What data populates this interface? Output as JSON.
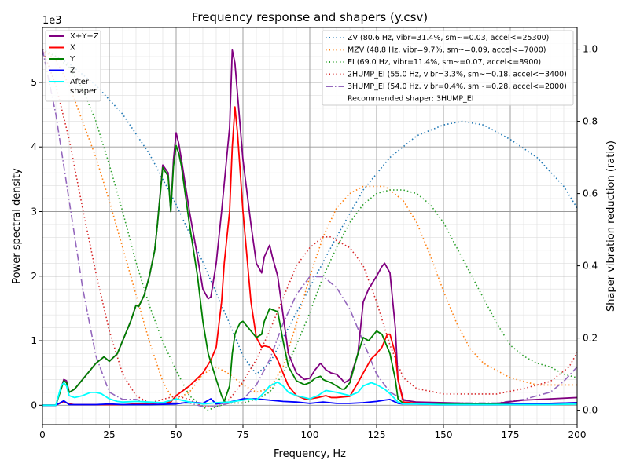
{
  "chart_data": {
    "type": "line",
    "title": "Frequency response and shapers (y.csv)",
    "xlabel": "Frequency, Hz",
    "ylabel": "Power spectral density",
    "y2label": "Shaper vibration reduction (ratio)",
    "y_multiplier": "1e3",
    "xlim": [
      0,
      200
    ],
    "ylim": [
      -0.3,
      5.85
    ],
    "y2lim": [
      -0.04,
      1.06
    ],
    "xticks": [
      0,
      25,
      50,
      75,
      100,
      125,
      150,
      175,
      200
    ],
    "yticks": [
      0,
      1,
      2,
      3,
      4,
      5
    ],
    "y2ticks": [
      0.0,
      0.2,
      0.4,
      0.6,
      0.8,
      1.0
    ],
    "grid": true,
    "psd_series": [
      {
        "name": "X+Y+Z",
        "color": "#800080",
        "x": [
          0,
          5,
          8,
          9,
          10,
          12,
          15,
          20,
          23,
          25,
          28,
          30,
          33,
          35,
          36,
          38,
          40,
          42,
          43,
          45,
          47,
          48,
          49,
          50,
          51,
          52,
          55,
          58,
          60,
          62,
          63,
          65,
          67,
          70,
          71,
          72,
          73,
          75,
          78,
          80,
          82,
          83,
          85,
          86,
          88,
          90,
          92,
          95,
          98,
          100,
          102,
          104,
          105,
          106,
          108,
          110,
          112,
          113,
          115,
          118,
          120,
          122,
          125,
          127,
          128,
          130,
          132,
          133,
          135,
          140,
          150,
          160,
          170,
          180,
          190,
          200
        ],
        "y": [
          0,
          0,
          0.4,
          0.38,
          0.2,
          0.25,
          0.4,
          0.65,
          0.75,
          0.68,
          0.8,
          1.0,
          1.3,
          1.55,
          1.53,
          1.7,
          2.0,
          2.4,
          2.8,
          3.72,
          3.6,
          3.0,
          3.8,
          4.22,
          4.05,
          3.8,
          3.0,
          2.3,
          1.8,
          1.65,
          1.68,
          2.2,
          3.0,
          4.3,
          5.5,
          5.3,
          4.8,
          3.8,
          2.8,
          2.2,
          2.05,
          2.3,
          2.48,
          2.3,
          2.0,
          1.4,
          0.8,
          0.5,
          0.4,
          0.42,
          0.55,
          0.65,
          0.6,
          0.55,
          0.5,
          0.48,
          0.4,
          0.35,
          0.4,
          0.8,
          1.6,
          1.8,
          2.0,
          2.15,
          2.2,
          2.05,
          1.2,
          0.4,
          0.08,
          0.05,
          0.04,
          0.03,
          0.03,
          0.08,
          0.1,
          0.12
        ]
      },
      {
        "name": "X",
        "color": "#ff0000",
        "x": [
          0,
          5,
          8,
          10,
          12,
          15,
          20,
          25,
          30,
          35,
          40,
          45,
          48,
          50,
          55,
          60,
          63,
          65,
          67,
          68,
          70,
          71,
          72,
          73,
          75,
          78,
          80,
          82,
          83,
          85,
          86,
          88,
          90,
          92,
          95,
          98,
          100,
          103,
          106,
          108,
          110,
          115,
          118,
          120,
          123,
          125,
          127,
          128,
          129,
          130,
          132,
          133,
          135,
          140,
          150,
          160,
          170,
          180,
          190,
          200
        ],
        "y": [
          0,
          0,
          0.06,
          0.02,
          0.01,
          0.01,
          0.01,
          0.01,
          0.01,
          0.02,
          0.03,
          0.04,
          0.05,
          0.15,
          0.3,
          0.5,
          0.7,
          0.9,
          1.6,
          2.2,
          3.0,
          4.0,
          4.62,
          4.2,
          3.0,
          1.6,
          1.05,
          0.9,
          0.92,
          0.9,
          0.85,
          0.7,
          0.5,
          0.3,
          0.15,
          0.1,
          0.1,
          0.12,
          0.15,
          0.12,
          0.12,
          0.14,
          0.35,
          0.5,
          0.72,
          0.8,
          0.9,
          1.0,
          1.1,
          1.1,
          0.8,
          0.4,
          0.05,
          0.03,
          0.02,
          0.02,
          0.02,
          0.02,
          0.03,
          0.04
        ]
      },
      {
        "name": "Y",
        "color": "#008000",
        "x": [
          0,
          5,
          8,
          9,
          10,
          12,
          15,
          20,
          23,
          25,
          28,
          30,
          33,
          35,
          36,
          38,
          40,
          42,
          43,
          45,
          47,
          48,
          49,
          50,
          51,
          52,
          55,
          58,
          60,
          62,
          65,
          67,
          68,
          70,
          71,
          72,
          73,
          74,
          75,
          77,
          78,
          80,
          82,
          83,
          85,
          86,
          88,
          90,
          92,
          95,
          98,
          100,
          102,
          104,
          105,
          106,
          108,
          110,
          112,
          113,
          115,
          118,
          120,
          122,
          125,
          127,
          128,
          130,
          132,
          133,
          135,
          140,
          150,
          160,
          170,
          180,
          190,
          200
        ],
        "y": [
          0,
          0,
          0.38,
          0.35,
          0.2,
          0.25,
          0.4,
          0.65,
          0.75,
          0.68,
          0.8,
          1.0,
          1.3,
          1.55,
          1.53,
          1.7,
          2.0,
          2.4,
          2.8,
          3.68,
          3.55,
          3.0,
          3.7,
          4.02,
          3.9,
          3.7,
          2.8,
          2.0,
          1.3,
          0.8,
          0.4,
          0.15,
          0.06,
          0.3,
          0.8,
          1.1,
          1.2,
          1.28,
          1.3,
          1.2,
          1.15,
          1.05,
          1.1,
          1.3,
          1.5,
          1.48,
          1.45,
          1.0,
          0.6,
          0.38,
          0.32,
          0.35,
          0.42,
          0.45,
          0.4,
          0.38,
          0.35,
          0.3,
          0.25,
          0.25,
          0.35,
          0.8,
          1.05,
          1.0,
          1.15,
          1.1,
          1.0,
          0.8,
          0.4,
          0.1,
          0.03,
          0.03,
          0.02,
          0.02,
          0.02,
          0.02,
          0.02,
          0.02
        ]
      },
      {
        "name": "Z",
        "color": "#0000ff",
        "x": [
          0,
          5,
          8,
          10,
          15,
          20,
          25,
          30,
          40,
          50,
          55,
          60,
          63,
          65,
          70,
          75,
          80,
          85,
          90,
          95,
          100,
          105,
          110,
          115,
          120,
          125,
          128,
          130,
          133,
          135,
          140,
          150,
          160,
          170,
          180,
          190,
          200
        ],
        "y": [
          0,
          0,
          0.07,
          0.01,
          0.01,
          0.01,
          0.02,
          0.01,
          0.01,
          0.02,
          0.05,
          0.03,
          0.1,
          0.02,
          0.05,
          0.1,
          0.1,
          0.08,
          0.06,
          0.05,
          0.03,
          0.05,
          0.03,
          0.03,
          0.04,
          0.06,
          0.08,
          0.09,
          0.03,
          0.02,
          0.02,
          0.01,
          0.01,
          0.01,
          0.02,
          0.03,
          0.04
        ]
      },
      {
        "name": "After\nshaper",
        "color": "#00ffff",
        "x": [
          0,
          5,
          7,
          8,
          9,
          10,
          12,
          15,
          18,
          20,
          22,
          25,
          28,
          30,
          35,
          40,
          45,
          50,
          55,
          60,
          65,
          70,
          75,
          78,
          80,
          83,
          85,
          88,
          90,
          92,
          95,
          100,
          103,
          106,
          110,
          115,
          118,
          120,
          123,
          125,
          128,
          130,
          133,
          135,
          140,
          150,
          160,
          170,
          180,
          190,
          200
        ],
        "y": [
          0,
          0,
          0.3,
          0.35,
          0.3,
          0.15,
          0.12,
          0.15,
          0.2,
          0.2,
          0.18,
          0.1,
          0.06,
          0.05,
          0.06,
          0.05,
          0.04,
          0.1,
          0.05,
          0.02,
          0.04,
          0.05,
          0.08,
          0.1,
          0.08,
          0.2,
          0.3,
          0.36,
          0.3,
          0.2,
          0.15,
          0.1,
          0.15,
          0.23,
          0.2,
          0.15,
          0.2,
          0.3,
          0.35,
          0.32,
          0.25,
          0.18,
          0.05,
          0.02,
          0.02,
          0.01,
          0.01,
          0.01,
          0.01,
          0.01,
          0.02
        ]
      }
    ],
    "shaper_series": [
      {
        "name": "ZV (80.6 Hz, vibr=31.4%, sm~=0.03, accel<=25300)",
        "color": "#1f77b4",
        "style": "dotted",
        "x": [
          0,
          10,
          20,
          30,
          40,
          50,
          60,
          70,
          75,
          80,
          85,
          90,
          100,
          110,
          120,
          130,
          140,
          150,
          157,
          165,
          175,
          185,
          195,
          200
        ],
        "y": [
          1.0,
          0.96,
          0.9,
          0.82,
          0.71,
          0.57,
          0.41,
          0.24,
          0.15,
          0.1,
          0.13,
          0.2,
          0.34,
          0.48,
          0.61,
          0.7,
          0.76,
          0.79,
          0.8,
          0.79,
          0.75,
          0.7,
          0.62,
          0.56
        ]
      },
      {
        "name": "MZV (48.8 Hz, vibr=9.7%, sm~=0.09, accel<=7000)",
        "color": "#ff7f0e",
        "style": "dotted",
        "x": [
          0,
          5,
          10,
          15,
          20,
          25,
          30,
          35,
          40,
          45,
          48,
          50,
          55,
          60,
          65,
          70,
          75,
          80,
          85,
          90,
          95,
          100,
          105,
          110,
          115,
          120,
          125,
          128,
          130,
          135,
          140,
          145,
          150,
          155,
          160,
          165,
          170,
          175,
          180,
          185,
          190,
          195,
          200
        ],
        "y": [
          1.0,
          0.97,
          0.9,
          0.8,
          0.7,
          0.58,
          0.45,
          0.32,
          0.19,
          0.08,
          0.04,
          0.03,
          0.05,
          0.1,
          0.12,
          0.1,
          0.07,
          0.05,
          0.06,
          0.12,
          0.24,
          0.37,
          0.48,
          0.56,
          0.6,
          0.62,
          0.62,
          0.62,
          0.61,
          0.58,
          0.52,
          0.43,
          0.33,
          0.24,
          0.17,
          0.13,
          0.11,
          0.09,
          0.08,
          0.07,
          0.07,
          0.07,
          0.07
        ]
      },
      {
        "name": "EI (69.0 Hz, vibr=11.4%, sm~=0.07, accel<=8900)",
        "color": "#2ca02c",
        "style": "dotted",
        "x": [
          0,
          5,
          10,
          15,
          20,
          25,
          30,
          35,
          40,
          45,
          50,
          55,
          60,
          62,
          65,
          70,
          75,
          80,
          85,
          90,
          95,
          100,
          105,
          110,
          115,
          120,
          125,
          130,
          135,
          140,
          145,
          150,
          155,
          160,
          165,
          170,
          175,
          180,
          185,
          190,
          195,
          200
        ],
        "y": [
          1.0,
          0.98,
          0.95,
          0.89,
          0.8,
          0.68,
          0.55,
          0.41,
          0.29,
          0.19,
          0.11,
          0.04,
          0.01,
          0.0,
          0.01,
          0.02,
          0.02,
          0.03,
          0.05,
          0.1,
          0.18,
          0.27,
          0.37,
          0.45,
          0.52,
          0.57,
          0.6,
          0.61,
          0.61,
          0.6,
          0.57,
          0.52,
          0.45,
          0.38,
          0.31,
          0.24,
          0.18,
          0.15,
          0.13,
          0.12,
          0.1,
          0.09
        ]
      },
      {
        "name": "2HUMP_EI (55.0 Hz, vibr=3.3%, sm~=0.18, accel<=3400)",
        "color": "#d62728",
        "style": "dotted",
        "x": [
          0,
          5,
          10,
          15,
          20,
          25,
          30,
          35,
          40,
          45,
          50,
          55,
          60,
          65,
          70,
          75,
          80,
          85,
          90,
          95,
          100,
          105,
          108,
          110,
          115,
          120,
          125,
          130,
          135,
          140,
          150,
          160,
          170,
          180,
          190,
          197,
          200
        ],
        "y": [
          1.0,
          0.9,
          0.75,
          0.56,
          0.38,
          0.22,
          0.1,
          0.04,
          0.02,
          0.03,
          0.04,
          0.03,
          0.01,
          0.01,
          0.03,
          0.08,
          0.14,
          0.22,
          0.31,
          0.4,
          0.45,
          0.48,
          0.48,
          0.47,
          0.45,
          0.4,
          0.3,
          0.18,
          0.09,
          0.06,
          0.045,
          0.045,
          0.045,
          0.06,
          0.08,
          0.12,
          0.16
        ]
      },
      {
        "name": "3HUMP_EI (54.0 Hz, vibr=0.4%, sm~=0.28, accel<=2000)",
        "color": "#9467bd",
        "style": "dashdot",
        "x": [
          0,
          5,
          10,
          15,
          20,
          25,
          30,
          35,
          40,
          45,
          50,
          55,
          60,
          65,
          70,
          75,
          80,
          85,
          90,
          95,
          100,
          105,
          110,
          115,
          120,
          125,
          130,
          135,
          140,
          150,
          160,
          170,
          180,
          190,
          195,
          200
        ],
        "y": [
          1.0,
          0.82,
          0.58,
          0.34,
          0.15,
          0.05,
          0.03,
          0.03,
          0.02,
          0.02,
          0.02,
          0.02,
          0.01,
          0.01,
          0.02,
          0.03,
          0.07,
          0.14,
          0.24,
          0.32,
          0.37,
          0.37,
          0.34,
          0.28,
          0.19,
          0.1,
          0.05,
          0.03,
          0.02,
          0.02,
          0.02,
          0.02,
          0.03,
          0.05,
          0.08,
          0.12
        ]
      }
    ],
    "shaper_recommendation": "Recommended shaper: 3HUMP_EI"
  }
}
